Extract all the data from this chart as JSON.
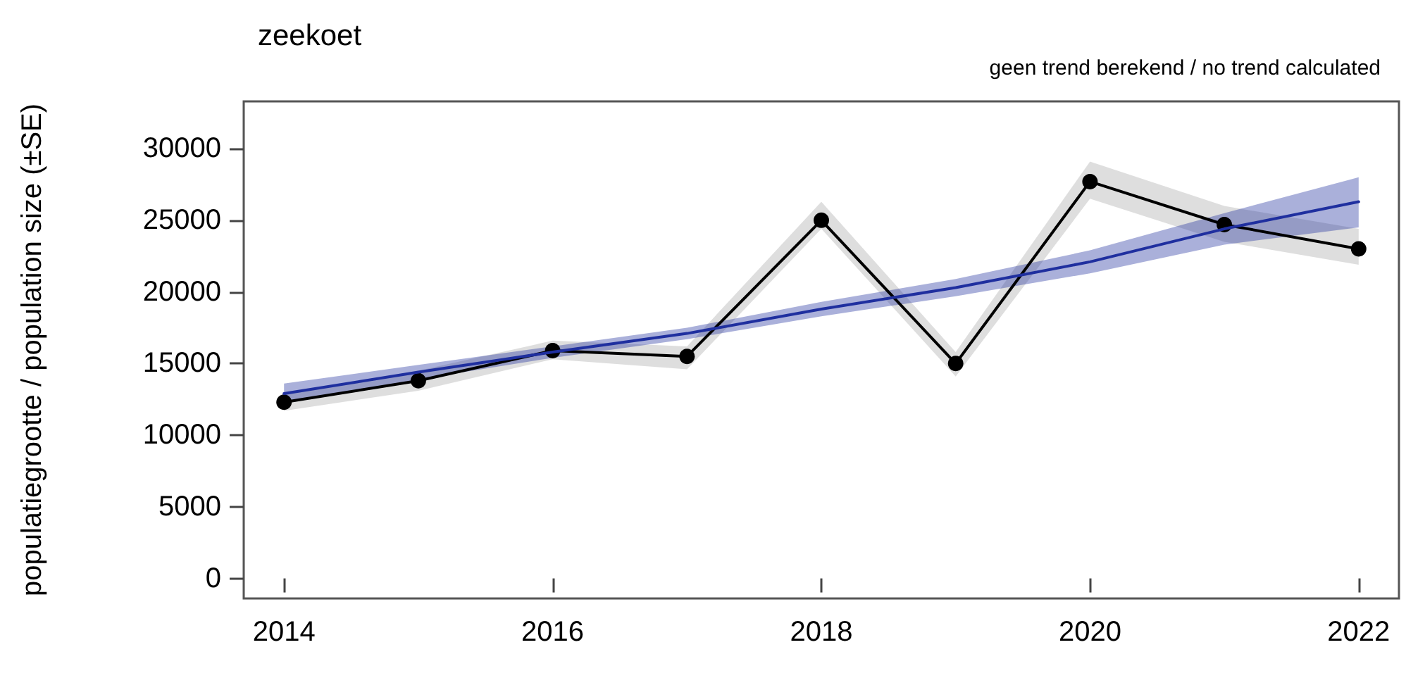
{
  "chart_data": {
    "type": "line",
    "title": "zeekoet",
    "ylabel": "populatiegrootte / population size (±SE)",
    "annotations": [
      "geen trend berekend / no trend calculated"
    ],
    "x": [
      2014,
      2015,
      2016,
      2017,
      2018,
      2019,
      2020,
      2021,
      2022
    ],
    "series": [
      {
        "color": "#000000",
        "marker": "circle",
        "values": [
          12300,
          13800,
          15900,
          15500,
          25000,
          15000,
          27700,
          24700,
          23000
        ],
        "lower": [
          11700,
          13100,
          15300,
          14600,
          24400,
          14100,
          26500,
          23500,
          21900
        ],
        "upper": [
          12900,
          14500,
          16600,
          16200,
          26300,
          15800,
          29100,
          26000,
          24400
        ]
      },
      {
        "color": "#1f2f9f",
        "marker": "none",
        "values": [
          12900,
          14400,
          15800,
          17100,
          18800,
          20300,
          22100,
          24400,
          26300
        ],
        "lower": [
          12200,
          13900,
          15400,
          16700,
          18300,
          19700,
          21300,
          23300,
          24500
        ],
        "upper": [
          13600,
          14900,
          16200,
          17500,
          19300,
          20900,
          22900,
          25500,
          28000
        ]
      }
    ],
    "xlim": [
      2013.7,
      2022.3
    ],
    "xticks": [
      2014,
      2016,
      2018,
      2020,
      2022
    ],
    "ylim": [
      -1400,
      33300
    ],
    "yticks": [
      0,
      5000,
      10000,
      15000,
      20000,
      25000,
      30000
    ],
    "line_style": "solid"
  }
}
